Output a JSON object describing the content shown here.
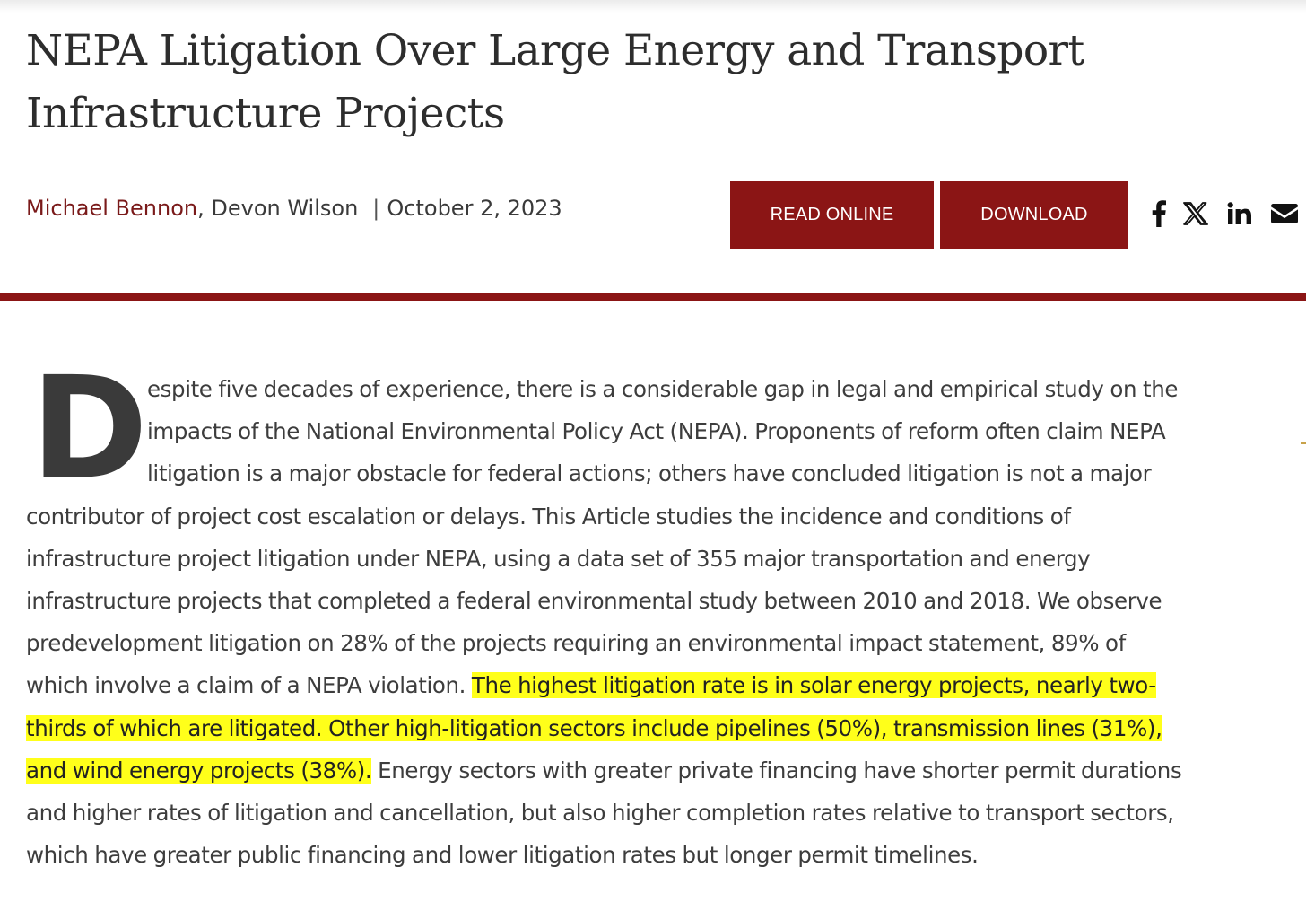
{
  "article": {
    "title": "NEPA Litigation Over Large Energy and Transport Infrastructure Projects",
    "author_primary": "Michael Bennon",
    "author_separator": ", ",
    "author_secondary": "Devon Wilson",
    "byline_divider": "|",
    "date": "October 2, 2023"
  },
  "actions": {
    "read_online_label": "READ ONLINE",
    "download_label": "DOWNLOAD"
  },
  "share": {
    "icons": [
      "facebook-icon",
      "x-icon",
      "linkedin-icon",
      "email-icon"
    ]
  },
  "abstract": {
    "drop_cap": "D",
    "lines": [
      "espite five decades of experience, there is a considerable gap in legal and empirical study on the",
      "impacts of the National Environmental Policy Act (NEPA). Proponents of reform often claim NEPA",
      "litigation is a major obstacle for federal actions; others have concluded litigation is not a major",
      "contributor of project cost escalation or delays. This Article studies the incidence and conditions of",
      "infrastructure project litigation under NEPA, using a data set of 355 major transportation and energy",
      "infrastructure projects that completed a federal environmental study between 2010 and 2018. We observe",
      "predevelopment litigation on 28% of the projects requiring an environmental impact statement, 89% of"
    ],
    "line8_plain": "which involve a claim of a NEPA violation. ",
    "line8_highlight": "The highest litigation rate is in solar energy projects, nearly two-",
    "line9_highlight": "thirds of which are litigated. Other high-litigation sectors include pipelines (50%), transmission lines (31%),",
    "line10_highlight": "and wind energy projects (38%).",
    "line10_plain": " Energy sectors with greater private financing have shorter permit durations",
    "line11": "and higher rates of litigation and cancellation, but also higher completion rates relative to transport sectors,",
    "line12": "which have greater public financing and lower litigation rates but longer permit timelines."
  },
  "colors": {
    "accent": "#8b1515",
    "highlight": "#ffff1a",
    "author_link": "#7a1a1a"
  }
}
